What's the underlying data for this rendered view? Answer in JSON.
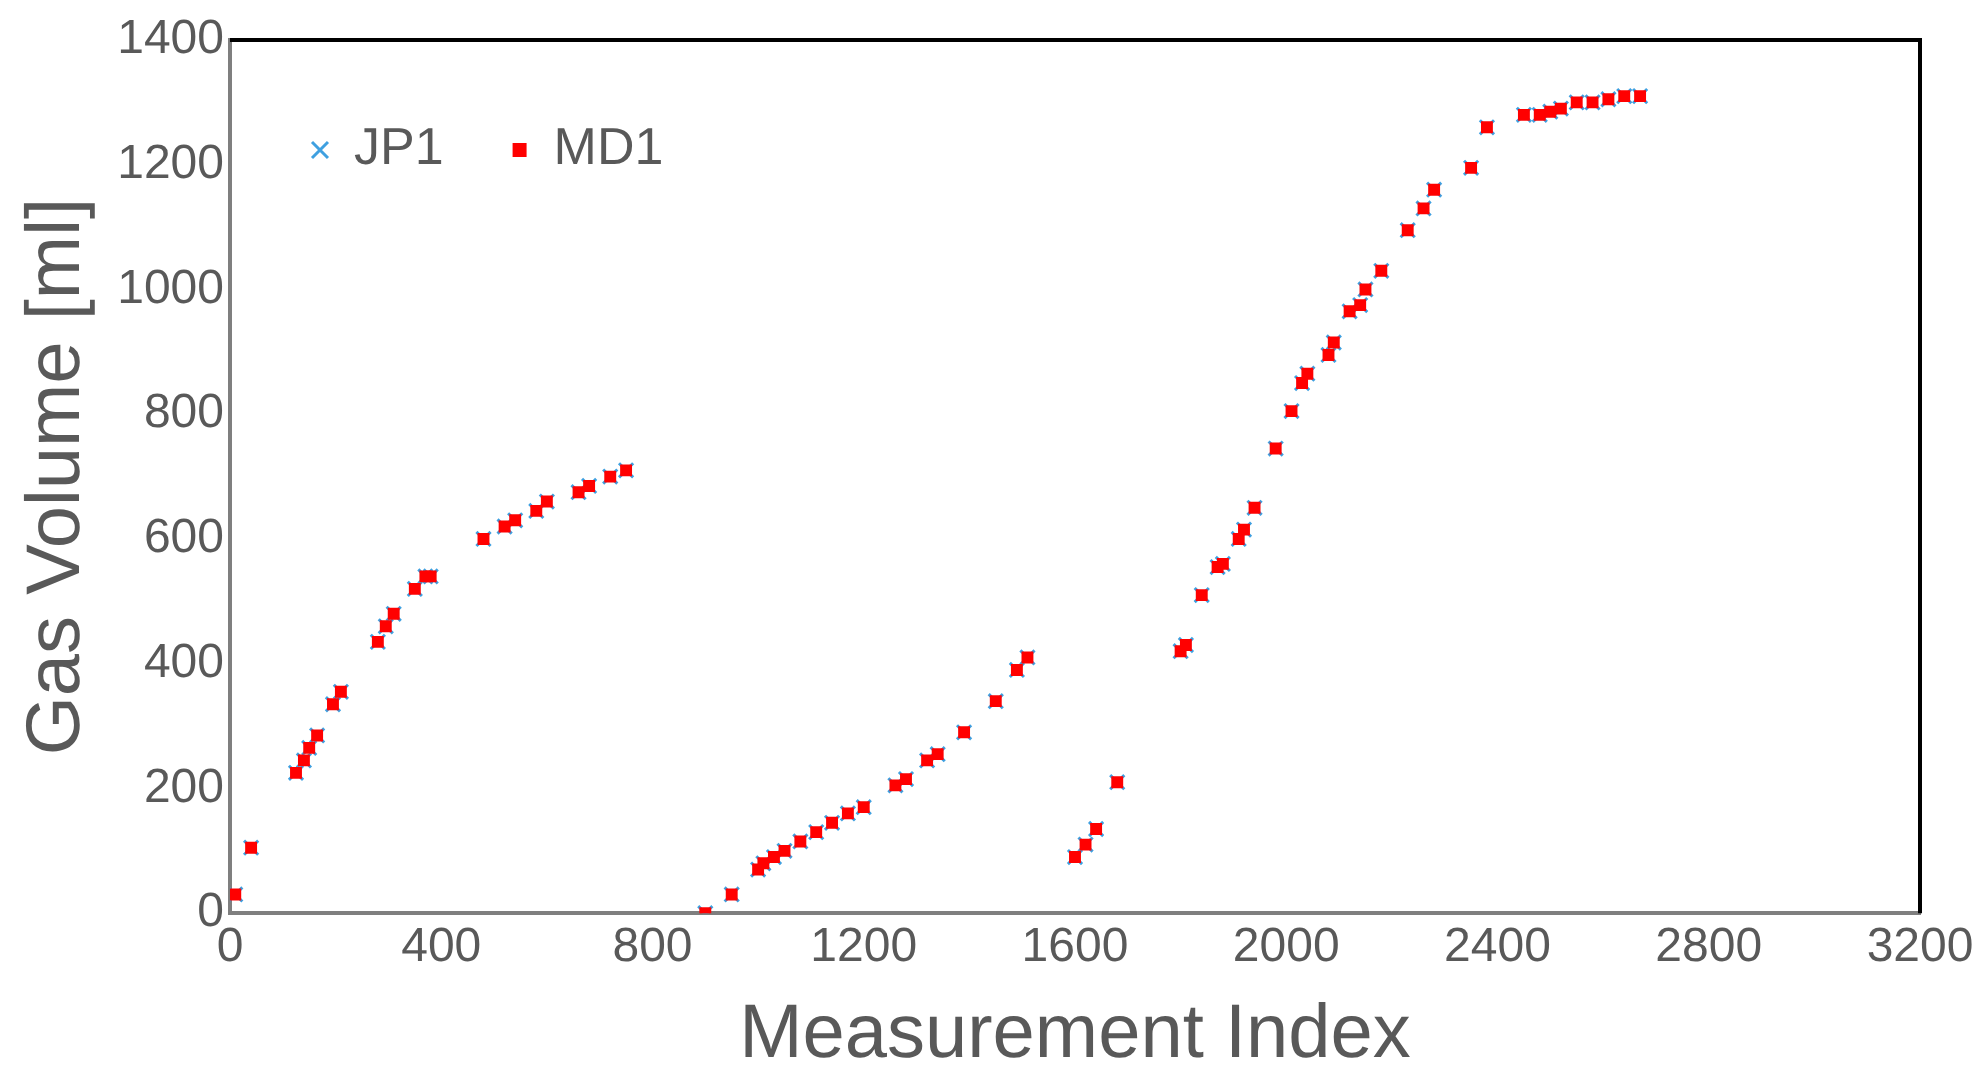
{
  "chart_data": {
    "type": "scatter",
    "xlabel": "Measurement Index",
    "ylabel": "Gas Volume [ml]",
    "xlim": [
      0,
      3200
    ],
    "xticks": [
      0,
      400,
      800,
      1200,
      1600,
      2000,
      2400,
      2800,
      3200
    ],
    "ylim": [
      0,
      1400
    ],
    "yticks": [
      0,
      200,
      400,
      600,
      800,
      1000,
      1200,
      1400
    ],
    "grid": false,
    "legend": "top left",
    "x": [
      10,
      40,
      125,
      140,
      150,
      165,
      195,
      210,
      280,
      295,
      310,
      350,
      370,
      380,
      480,
      520,
      540,
      580,
      600,
      660,
      680,
      720,
      750,
      900,
      950,
      1000,
      1010,
      1030,
      1050,
      1080,
      1110,
      1140,
      1170,
      1200,
      1260,
      1280,
      1320,
      1340,
      1390,
      1450,
      1490,
      1510,
      1600,
      1620,
      1640,
      1680,
      1800,
      1810,
      1840,
      1870,
      1880,
      1910,
      1920,
      1940,
      1980,
      2010,
      2030,
      2040,
      2080,
      2090,
      2120,
      2140,
      2150,
      2180,
      2230,
      2260,
      2280,
      2350,
      2380,
      2450,
      2480,
      2500,
      2520,
      2550,
      2580,
      2610,
      2640,
      2670
    ],
    "series": [
      {
        "name": "JP1",
        "color": "#3fa0e0",
        "marker": "cross",
        "values": [
          30,
          105,
          225,
          245,
          265,
          285,
          335,
          355,
          435,
          460,
          480,
          520,
          540,
          540,
          600,
          620,
          630,
          645,
          660,
          675,
          685,
          700,
          710,
          0,
          30,
          70,
          80,
          90,
          100,
          115,
          130,
          145,
          160,
          170,
          205,
          215,
          245,
          255,
          290,
          340,
          390,
          410,
          90,
          110,
          135,
          210,
          420,
          430,
          510,
          555,
          560,
          600,
          615,
          650,
          745,
          805,
          850,
          865,
          895,
          915,
          965,
          975,
          1000,
          1030,
          1095,
          1130,
          1160,
          1195,
          1260,
          1280,
          1280,
          1285,
          1290,
          1300,
          1300,
          1305,
          1310,
          1310
        ]
      },
      {
        "name": "MD1",
        "color": "#ff0000",
        "marker": "square",
        "values": [
          30,
          105,
          225,
          245,
          265,
          285,
          335,
          355,
          435,
          460,
          480,
          520,
          540,
          540,
          600,
          620,
          630,
          645,
          660,
          675,
          685,
          700,
          710,
          0,
          30,
          70,
          80,
          90,
          100,
          115,
          130,
          145,
          160,
          170,
          205,
          215,
          245,
          255,
          290,
          340,
          390,
          410,
          90,
          110,
          135,
          210,
          420,
          430,
          510,
          555,
          560,
          600,
          615,
          650,
          745,
          805,
          850,
          865,
          895,
          915,
          965,
          975,
          1000,
          1030,
          1095,
          1130,
          1160,
          1195,
          1260,
          1280,
          1280,
          1285,
          1290,
          1300,
          1300,
          1305,
          1310,
          1310
        ]
      }
    ]
  }
}
